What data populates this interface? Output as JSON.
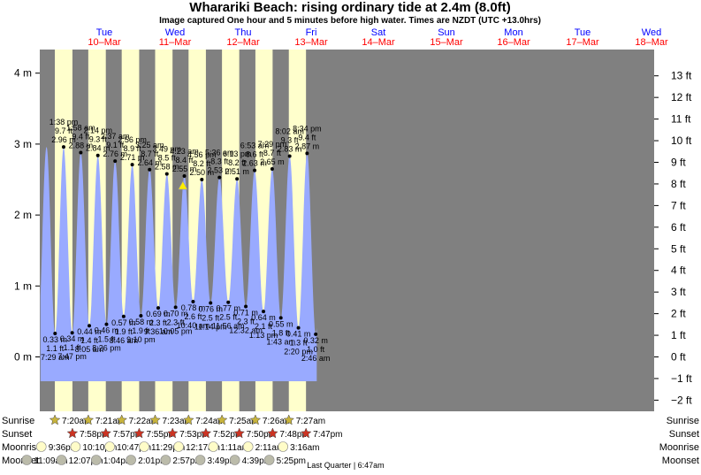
{
  "chart_data": {
    "type": "area",
    "title": "Wharariki Beach: rising  ordinary tide at 2.4m (8.0ft)",
    "subtitle": "Image captured One hour and 5 minutes before high water. Times are NZDT (UTC +13.0hrs)",
    "left_axis": {
      "ticks": [
        {
          "v": 4,
          "label": "4 m"
        },
        {
          "v": 3,
          "label": "3 m"
        },
        {
          "v": 2,
          "label": "2 m"
        },
        {
          "v": 1,
          "label": "1 m"
        },
        {
          "v": 0,
          "label": "0 m"
        }
      ]
    },
    "right_axis": {
      "ticks": [
        "13 ft",
        "12 ft",
        "11 ft",
        "10 ft",
        "9 ft",
        "8 ft",
        "7 ft",
        "6 ft",
        "5 ft",
        "4 ft",
        "3 ft",
        "2 ft",
        "1 ft",
        "0 ft",
        "−1 ft",
        "−2 ft"
      ]
    },
    "days": [
      {
        "name": "Tue",
        "date": "10–Mar"
      },
      {
        "name": "Wed",
        "date": "11–Mar"
      },
      {
        "name": "Thu",
        "date": "12–Mar"
      },
      {
        "name": "Fri",
        "date": "13–Mar"
      },
      {
        "name": "Sat",
        "date": "14–Mar"
      },
      {
        "name": "Sun",
        "date": "15–Mar"
      },
      {
        "name": "Mon",
        "date": "16–Mar"
      },
      {
        "name": "Tue",
        "date": "17–Mar"
      },
      {
        "name": "Wed",
        "date": "18–Mar"
      }
    ],
    "tides": [
      {
        "type": "low",
        "time": "7:29 am",
        "m": "0.33 m",
        "ft": "1.1 ft",
        "h": 0.33
      },
      {
        "type": "high",
        "time": "1:38 pm",
        "m": "2.96 m",
        "ft": "9.7 ft",
        "h": 2.96
      },
      {
        "type": "low",
        "time": "7:47 pm",
        "m": "0.34 m",
        "ft": "1.1 ft",
        "h": 0.34
      },
      {
        "type": "high",
        "time": "1:58 am",
        "m": "2.88 m",
        "ft": "9.4 ft",
        "h": 2.88
      },
      {
        "type": "low",
        "time": "8:05 am",
        "m": "0.44 m",
        "ft": "1.4 ft",
        "h": 0.44
      },
      {
        "type": "high",
        "time": "2:14 pm",
        "m": "2.84 m",
        "ft": "9.3 ft",
        "h": 2.84
      },
      {
        "type": "low",
        "time": "8:26 pm",
        "m": "0.46 m",
        "ft": "1.5 ft",
        "h": 0.46
      },
      {
        "type": "high",
        "time": "2:37 am",
        "m": "2.76 m",
        "ft": "9.1 ft",
        "h": 2.76
      },
      {
        "type": "low",
        "time": "8:46 am",
        "m": "0.57 m",
        "ft": "1.9 ft",
        "h": 0.57
      },
      {
        "type": "high",
        "time": "2:56 pm",
        "m": "2.71 m",
        "ft": "8.9 ft",
        "h": 2.71
      },
      {
        "type": "low",
        "time": "9:10 pm",
        "m": "0.58 m",
        "ft": "1.9 ft",
        "h": 0.58
      },
      {
        "type": "high",
        "time": "3:25 am",
        "m": "2.64 m",
        "ft": "8.7 ft",
        "h": 2.64
      },
      {
        "type": "low",
        "time": "9:36 am",
        "m": "0.69 m",
        "ft": "2.3 ft",
        "h": 0.69
      },
      {
        "type": "high",
        "time": "3:49 pm",
        "m": "2.58 m",
        "ft": "8.5 ft",
        "h": 2.58
      },
      {
        "type": "low",
        "time": "10:05 pm",
        "m": "0.70 m",
        "ft": "2.3 ft",
        "h": 0.7
      },
      {
        "type": "high",
        "time": "4:23 am",
        "m": "2.55 m",
        "ft": "8.4 ft",
        "h": 2.55
      },
      {
        "type": "low",
        "time": "10:40 am",
        "m": "0.78 m",
        "ft": "2.6 ft",
        "h": 0.78
      },
      {
        "type": "high",
        "time": "4:56 pm",
        "m": "2.50 m",
        "ft": "8.2 ft",
        "h": 2.5
      },
      {
        "type": "low",
        "time": "11:14 pm",
        "m": "0.76 m",
        "ft": "2.5 ft",
        "h": 0.76
      },
      {
        "type": "high",
        "time": "5:36 am",
        "m": "2.53 m",
        "ft": "8.3 ft",
        "h": 2.53
      },
      {
        "type": "low",
        "time": "11:56 am",
        "m": "0.77 m",
        "ft": "2.5 ft",
        "h": 0.77
      },
      {
        "type": "high",
        "time": "6:13 pm",
        "m": "2.51 m",
        "ft": "8.2 ft",
        "h": 2.51
      },
      {
        "type": "low",
        "time": "12:32 am",
        "m": "0.71 m",
        "ft": "2.3 ft",
        "h": 0.71
      },
      {
        "type": "high",
        "time": "6:53 am",
        "m": "2.63 m",
        "ft": "8.6 ft",
        "h": 2.63
      },
      {
        "type": "low",
        "time": "1:13 pm",
        "m": "0.64 m",
        "ft": "2.1 ft",
        "h": 0.64
      },
      {
        "type": "high",
        "time": "7:29 pm",
        "m": "2.65 m",
        "ft": "8.7 ft",
        "h": 2.65
      },
      {
        "type": "low",
        "time": "1:43 am",
        "m": "0.55 m",
        "ft": "1.8 ft",
        "h": 0.55
      },
      {
        "type": "high",
        "time": "8:02 am",
        "m": "2.83 m",
        "ft": "9.3 ft",
        "h": 2.83
      },
      {
        "type": "low",
        "time": "2:20 pm",
        "m": "0.41 m",
        "ft": "1.3 ft",
        "h": 0.41
      },
      {
        "type": "high",
        "time": "8:34 pm",
        "m": "2.87 m",
        "ft": "9.4 ft",
        "h": 2.87
      },
      {
        "type": "low",
        "time": "2:46 am",
        "m": "0.32 m",
        "ft": "1.0 ft",
        "h": 0.32
      }
    ],
    "current_level_m": 2.4,
    "rows": [
      {
        "label": "Sunrise",
        "icon": "sun-icon",
        "values": [
          "7:20am",
          "7:21am",
          "7:22am",
          "7:23am",
          "7:24am",
          "7:25am",
          "7:26am",
          "7:27am"
        ]
      },
      {
        "label": "Sunset",
        "icon": "sunset-star-icon",
        "values": [
          "7:58pm",
          "7:57pm",
          "7:55pm",
          "7:53pm",
          "7:52pm",
          "7:50pm",
          "7:48pm",
          "7:47pm"
        ]
      },
      {
        "label": "Moonrise",
        "icon": "moonrise-icon",
        "values": [
          "9:36pm",
          "10:10pm",
          "10:47pm",
          "11:29pm",
          "12:17am",
          "1:11am",
          "2:11am",
          "3:16am"
        ]
      },
      {
        "label": "Moonset",
        "icon": "moonset-icon",
        "values": [
          "11:09am",
          "12:07pm",
          "1:04pm",
          "2:01pm",
          "2:57pm",
          "3:49pm",
          "4:39pm",
          "5:25pm"
        ]
      }
    ],
    "moon_phase_note": "Last Quarter | 6:47am",
    "colors": {
      "background": "#808080",
      "day_band": "#ffffcc",
      "water": "#99aaff",
      "day_name": "#0000ff",
      "date": "#ff0000",
      "sun_icon": "#c8b43c",
      "sunset_icon": "#cc3322",
      "moonrise_icon": "#fffcc8",
      "moonset_icon": "#bbbbaa",
      "current_marker": "#ffee00"
    }
  }
}
